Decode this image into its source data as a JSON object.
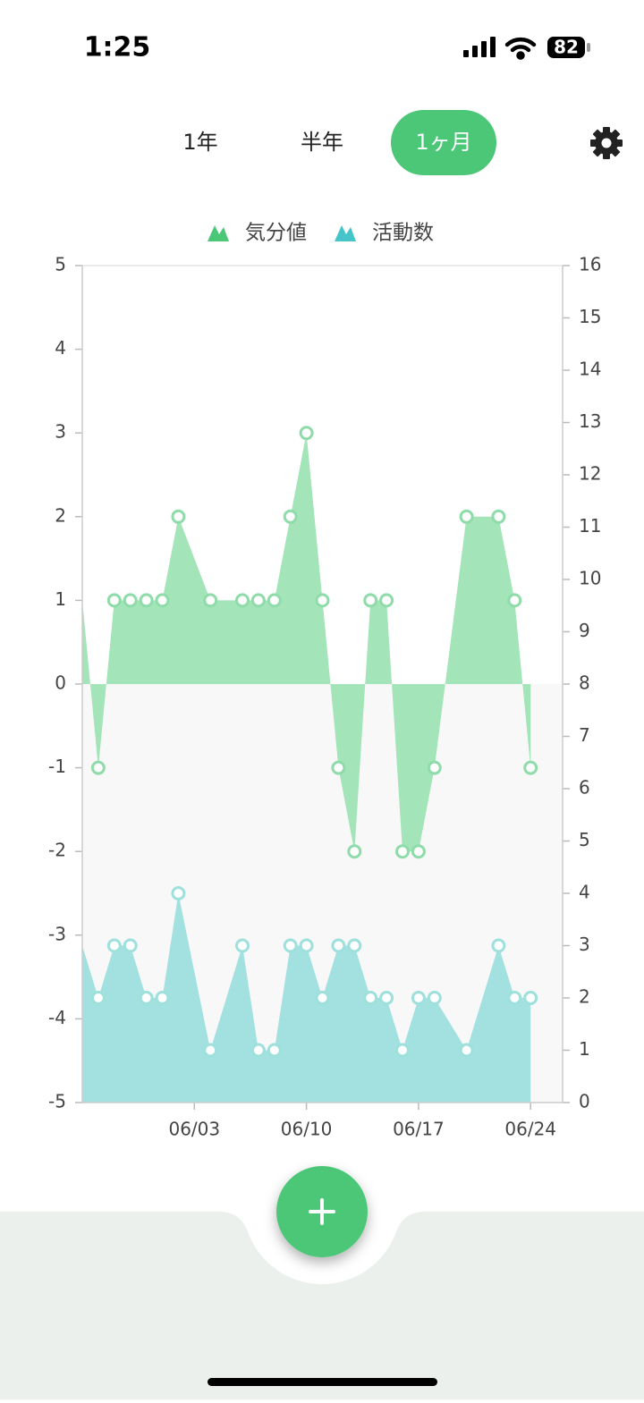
{
  "status_bar": {
    "time": "1:25",
    "battery": "82"
  },
  "tabs": [
    "1年",
    "半年",
    "1ヶ月"
  ],
  "active_tab": 2,
  "chart_data": {
    "type": "area",
    "x": [
      "05/27",
      "05/28",
      "05/29",
      "05/30",
      "05/31",
      "06/01",
      "06/02",
      "06/04",
      "06/06",
      "06/07",
      "06/08",
      "06/09",
      "06/10",
      "06/11",
      "06/12",
      "06/13",
      "06/14",
      "06/15",
      "06/16",
      "06/17",
      "06/18",
      "06/20",
      "06/22",
      "06/23",
      "06/24"
    ],
    "series": [
      {
        "name": "気分値",
        "color": "#4cc777",
        "values": [
          1,
          -1,
          1,
          1,
          1,
          1,
          2,
          1,
          1,
          1,
          1,
          2,
          3,
          1,
          -1,
          -2,
          1,
          1,
          -2,
          -2,
          -1,
          2,
          2,
          1,
          -1
        ]
      },
      {
        "name": "活動数",
        "color": "#45c4c9",
        "axis": "y2",
        "values": [
          3,
          2,
          3,
          3,
          2,
          2,
          4,
          1,
          3,
          1,
          1,
          3,
          3,
          2,
          3,
          3,
          2,
          2,
          1,
          2,
          2,
          1,
          3,
          2,
          2
        ]
      }
    ],
    "xlim": [
      "05/27",
      "06/26"
    ],
    "xticks": [
      "06/03",
      "06/10",
      "06/17",
      "06/24"
    ],
    "ylim": [
      -5,
      5
    ],
    "yticks": [
      5,
      4,
      3,
      2,
      1,
      0,
      -1,
      -2,
      -3,
      -4,
      -5
    ],
    "y2lim": [
      0,
      16
    ],
    "y2ticks": [
      0,
      1,
      2,
      3,
      4,
      5,
      6,
      7,
      8,
      9,
      10,
      11,
      12,
      13,
      14,
      15,
      16
    ]
  }
}
